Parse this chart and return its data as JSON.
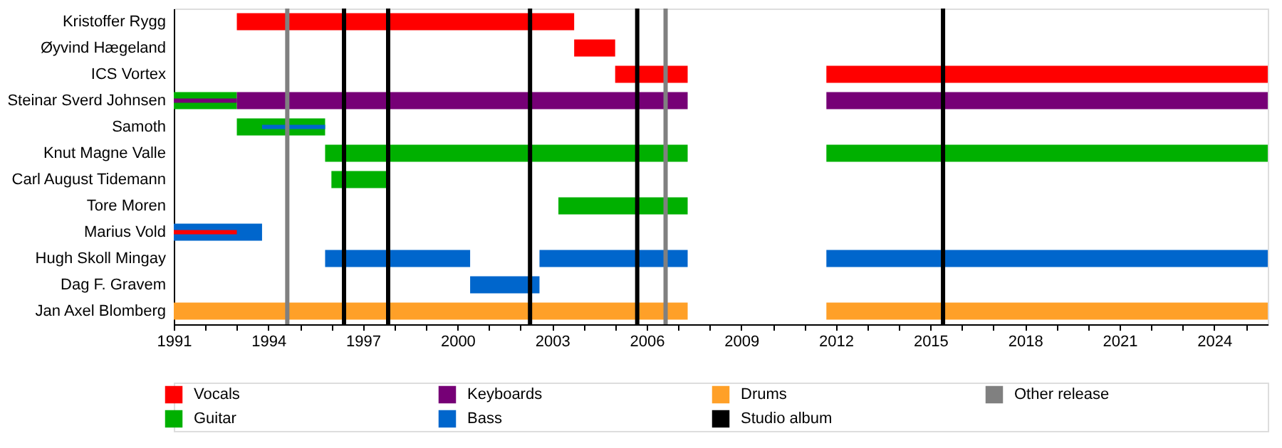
{
  "chart_data": {
    "type": "bar",
    "orientation": "horizontal",
    "categories": [
      "Kristoffer Rygg",
      "Øyvind Hægeland",
      "ICS Vortex",
      "Steinar Sverd Johnsen",
      "Samoth",
      "Knut Magne Valle",
      "Carl August Tidemann",
      "Tore Moren",
      "Marius Vold",
      "Hugh Skoll Mingay",
      "Dag F. Gravem",
      "Jan Axel Blomberg"
    ],
    "series": [
      {
        "name": "Vocals",
        "color": "#ff0000",
        "values": [
          10.7,
          1.3,
          2.3,
          null,
          null,
          null,
          null,
          null,
          null,
          null,
          null,
          null
        ],
        "base": [
          1993.0,
          2003.7,
          2005.0,
          null,
          null,
          null,
          null,
          null,
          null,
          null,
          null,
          null
        ]
      },
      {
        "color": "#ff0000",
        "values": [
          null,
          null,
          14.0,
          null,
          null,
          null,
          null,
          null,
          null,
          null,
          null,
          null
        ],
        "base": [
          null,
          null,
          2011.7,
          null,
          null,
          null,
          null,
          null,
          null,
          null,
          null,
          null
        ]
      },
      {
        "name": "Guitar",
        "color": "#00b000",
        "values": [
          null,
          null,
          null,
          2.0,
          2.8,
          11.5,
          1.8,
          4.1,
          null,
          null,
          null,
          null
        ],
        "base": [
          null,
          null,
          null,
          1991,
          1993.0,
          1995.8,
          1996.0,
          2003.2,
          null,
          null,
          null,
          null
        ]
      },
      {
        "color": "#00b000",
        "values": [
          null,
          null,
          null,
          null,
          null,
          14.0,
          null,
          null,
          null,
          null,
          null,
          null
        ],
        "base": [
          null,
          null,
          null,
          null,
          null,
          2011.7,
          null,
          null,
          null,
          null,
          null,
          null
        ]
      },
      {
        "name": "Keyboards",
        "color": "#760076",
        "values": [
          null,
          null,
          null,
          14.3,
          null,
          null,
          null,
          null,
          null,
          null,
          null,
          null
        ],
        "base": [
          null,
          null,
          null,
          1993.0,
          null,
          null,
          null,
          null,
          null,
          null,
          null,
          null
        ]
      },
      {
        "color": "#760076",
        "values": [
          null,
          null,
          null,
          14.0,
          null,
          null,
          null,
          null,
          null,
          null,
          null,
          null
        ],
        "base": [
          null,
          null,
          null,
          2011.7,
          null,
          null,
          null,
          null,
          null,
          null,
          null,
          null
        ]
      },
      {
        "name": "Bass",
        "color": "#0066cc",
        "values": [
          null,
          null,
          null,
          null,
          null,
          null,
          null,
          null,
          2.8,
          4.6,
          2.2,
          null
        ],
        "base": [
          null,
          null,
          null,
          null,
          null,
          null,
          null,
          null,
          1991,
          1995.8,
          2000.4,
          null
        ]
      },
      {
        "color": "#0066cc",
        "values": [
          null,
          null,
          null,
          null,
          null,
          null,
          null,
          null,
          null,
          4.7,
          null,
          null
        ],
        "base": [
          null,
          null,
          null,
          null,
          null,
          null,
          null,
          null,
          null,
          2002.6,
          null,
          null
        ]
      },
      {
        "color": "#0066cc",
        "values": [
          null,
          null,
          null,
          null,
          null,
          null,
          null,
          null,
          null,
          14.0,
          null,
          null
        ],
        "base": [
          null,
          null,
          null,
          null,
          null,
          null,
          null,
          null,
          null,
          2011.7,
          null,
          null
        ]
      },
      {
        "name": "Drums",
        "color": "#ffa028",
        "values": [
          null,
          null,
          null,
          null,
          null,
          null,
          null,
          null,
          null,
          null,
          null,
          16.3
        ],
        "base": [
          null,
          null,
          null,
          null,
          null,
          null,
          null,
          null,
          null,
          null,
          null,
          1991
        ]
      },
      {
        "color": "#ffa028",
        "values": [
          null,
          null,
          null,
          null,
          null,
          null,
          null,
          null,
          null,
          null,
          null,
          14.0
        ],
        "base": [
          null,
          null,
          null,
          null,
          null,
          null,
          null,
          null,
          null,
          null,
          null,
          2011.7
        ]
      },
      {
        "color": "#760076",
        "values": [
          null,
          null,
          null,
          2.0,
          null,
          null,
          null,
          null,
          null,
          null,
          null,
          null
        ],
        "base": [
          null,
          null,
          null,
          1991,
          null,
          null,
          null,
          null,
          null,
          null,
          null,
          null
        ]
      },
      {
        "color": "#0066cc",
        "values": [
          null,
          null,
          null,
          null,
          2.0,
          null,
          null,
          null,
          null,
          null,
          null,
          null
        ],
        "base": [
          null,
          null,
          null,
          null,
          1993.8,
          null,
          null,
          null,
          null,
          null,
          null,
          null
        ]
      },
      {
        "color": "#ff0000",
        "values": [
          null,
          null,
          null,
          null,
          null,
          null,
          null,
          null,
          2.0,
          null,
          null,
          null
        ],
        "base": [
          null,
          null,
          null,
          null,
          null,
          null,
          null,
          null,
          1991,
          null,
          null,
          null
        ]
      }
    ],
    "ref_lines": [
      {
        "axis": "x",
        "value": 1996.4,
        "label": "Studio album",
        "color": "#000000"
      },
      {
        "axis": "x",
        "value": 1997.8,
        "color": "#000000"
      },
      {
        "axis": "x",
        "value": 2002.3,
        "color": "#000000"
      },
      {
        "axis": "x",
        "value": 2005.7,
        "color": "#000000"
      },
      {
        "axis": "x",
        "value": 2015.4,
        "color": "#000000"
      },
      {
        "axis": "x",
        "value": 1994.6,
        "label": "Other release",
        "color": "#808080"
      },
      {
        "axis": "x",
        "value": 2006.6,
        "color": "#808080"
      }
    ],
    "xlim": [
      1991,
      2025.7
    ],
    "xticks": [
      1991,
      {
        "value": 1992,
        "label": null
      },
      {
        "value": 1993,
        "label": null
      },
      1994,
      {
        "value": 1995,
        "label": null
      },
      {
        "value": 1996,
        "label": null
      },
      1997,
      {
        "value": 1998,
        "label": null
      },
      {
        "value": 1999,
        "label": null
      },
      2000,
      {
        "value": 2001,
        "label": null
      },
      {
        "value": 2002,
        "label": null
      },
      2003,
      {
        "value": 2004,
        "label": null
      },
      {
        "value": 2005,
        "label": null
      },
      2006,
      {
        "value": 2007,
        "label": null
      },
      {
        "value": 2008,
        "label": null
      },
      2009,
      {
        "value": 2010,
        "label": null
      },
      {
        "value": 2011,
        "label": null
      },
      2012,
      {
        "value": 2013,
        "label": null
      },
      {
        "value": 2014,
        "label": null
      },
      2015,
      {
        "value": 2016,
        "label": null
      },
      {
        "value": 2017,
        "label": null
      },
      2018,
      {
        "value": 2019,
        "label": null
      },
      {
        "value": 2020,
        "label": null
      },
      2021,
      {
        "value": 2022,
        "label": null
      },
      {
        "value": 2023,
        "label": null
      },
      2024,
      {
        "value": 2025,
        "label": null
      }
    ],
    "grid": false,
    "legend": "bottom"
  }
}
